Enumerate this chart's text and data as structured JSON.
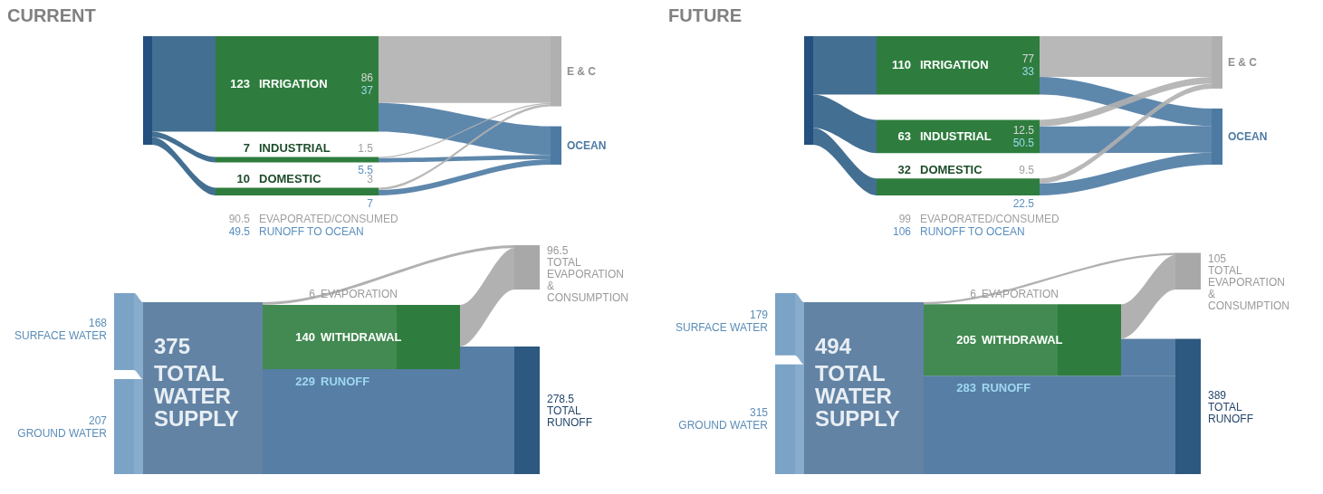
{
  "chart_data": [
    {
      "type": "other",
      "title": "CURRENT",
      "data_labels": true,
      "categories": [
        "SURFACE WATER",
        "GROUND WATER",
        "TOTAL WATER SUPPLY",
        "EVAPORATION",
        "WITHDRAWAL",
        "RUNOFF",
        "TOTAL EVAPORATION & CONSUMPTION",
        "TOTAL RUNOFF"
      ],
      "values": [
        168,
        207,
        375,
        6,
        140,
        229,
        96.5,
        278.5
      ],
      "colors": [
        "#7aa3c6",
        "#7aa3c6",
        "#6283a4",
        "#a8a8a8",
        "#2e7d3e",
        "#45709a",
        "#a8a8a8",
        "#2d5880"
      ]
    },
    {
      "type": "other",
      "data_labels": true,
      "categories": [
        "IRRIGATION",
        "INDUSTRIAL",
        "DOMESTIC"
      ],
      "values": [
        123,
        7,
        10
      ],
      "colors": [
        "#2e7d3e",
        "#2e7d3e",
        "#2e7d3e"
      ],
      "series": [
        {
          "name": "E & C",
          "color": "#b0b0b0",
          "values": [
            86,
            1.5,
            3
          ]
        },
        {
          "name": "OCEAN",
          "color": "#4d7aa3",
          "values": [
            37,
            5.5,
            7
          ]
        }
      ],
      "totals": [
        "90.5",
        "49.5"
      ],
      "annotations": [
        "EVAPORATED/CONSUMED",
        "RUNOFF TO OCEAN"
      ]
    },
    {
      "type": "other",
      "title": "FUTURE",
      "data_labels": true,
      "categories": [
        "SURFACE WATER",
        "GROUND WATER",
        "TOTAL WATER SUPPLY",
        "EVAPORATION",
        "WITHDRAWAL",
        "RUNOFF",
        "TOTAL EVAPORATION & CONSUMPTION",
        "TOTAL RUNOFF"
      ],
      "values": [
        179,
        315,
        494,
        6,
        205,
        283,
        105,
        389
      ],
      "colors": [
        "#7aa3c6",
        "#7aa3c6",
        "#6283a4",
        "#a8a8a8",
        "#2e7d3e",
        "#45709a",
        "#a8a8a8",
        "#2d5880"
      ]
    },
    {
      "type": "other",
      "data_labels": true,
      "categories": [
        "IRRIGATION",
        "INDUSTRIAL",
        "DOMESTIC"
      ],
      "values": [
        110,
        63,
        32
      ],
      "colors": [
        "#2e7d3e",
        "#2e7d3e",
        "#2e7d3e"
      ],
      "series": [
        {
          "name": "E & C",
          "color": "#b0b0b0",
          "values": [
            77,
            12.5,
            9.5
          ]
        },
        {
          "name": "OCEAN",
          "color": "#4d7aa3",
          "values": [
            33,
            50.5,
            22.5
          ]
        }
      ],
      "totals": [
        "99",
        "106"
      ],
      "annotations": [
        "EVAPORATED/CONSUMED",
        "RUNOFF TO OCEAN"
      ]
    }
  ]
}
